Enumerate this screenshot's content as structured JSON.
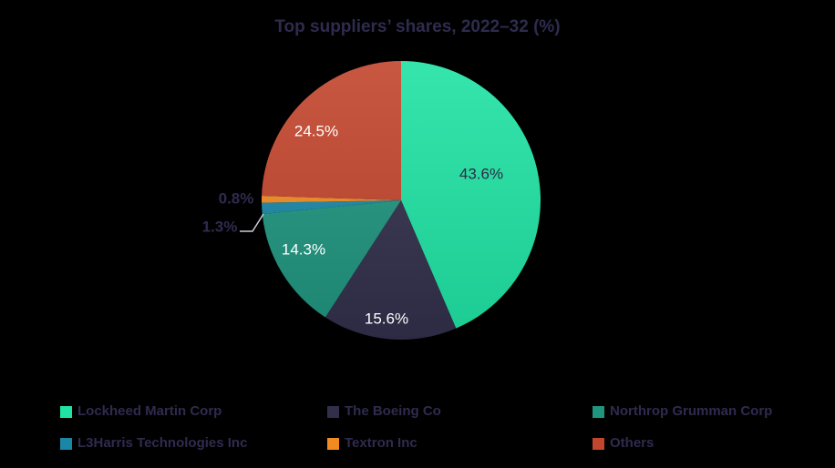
{
  "title": "Top suppliers’ shares, 2022–32 (%)",
  "background_color": "#000000",
  "title_color": "#2f2b4e",
  "chart_data": {
    "type": "pie",
    "title": "Top suppliers’ shares, 2022–32 (%)",
    "categories": [
      "Lockheed Martin Corp",
      "The Boeing Co",
      "Northrop Grumman Corp",
      "L3Harris Technologies Inc",
      "Textron Inc",
      "Others"
    ],
    "values": [
      43.6,
      15.6,
      14.3,
      1.3,
      0.8,
      24.5
    ],
    "slice_labels": [
      "43.6%",
      "15.6%",
      "14.3%",
      "1.3%",
      "0.8%",
      "24.5%"
    ],
    "colors": [
      "#1fe2a3",
      "#322f4b",
      "#1f947e",
      "#1a87a6",
      "#f28a22",
      "#c2452d"
    ],
    "value_label_colors": [
      "#2e2b45",
      "#ffffff",
      "#ffffff",
      "#2f2b4e",
      "#2f2b4e",
      "#ffffff"
    ],
    "start_angle": "12 o'clock",
    "direction": "clockwise",
    "legend_position": "bottom",
    "legend_text_color": "#2f2b4e",
    "leader_line_color": "#cdced6"
  }
}
